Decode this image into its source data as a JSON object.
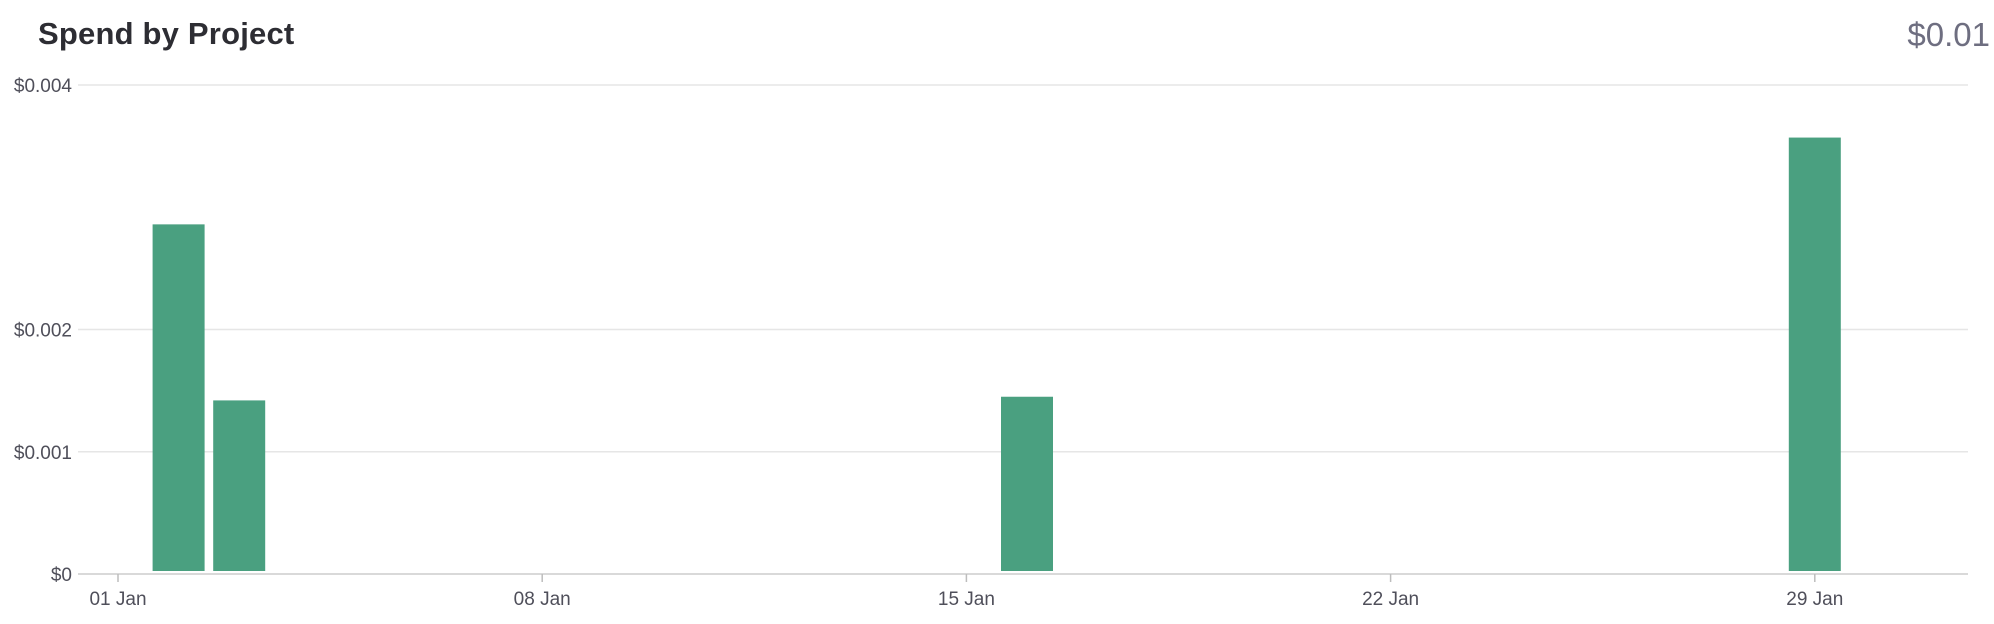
{
  "header": {
    "title": "Spend by Project",
    "total": "$0.01"
  },
  "chart_data": {
    "type": "bar",
    "title": "Spend by Project",
    "xlabel": "",
    "ylabel": "",
    "x_type": "date",
    "xlim": [
      "2024-01-01",
      "2024-01-31"
    ],
    "ylim": [
      0,
      0.004
    ],
    "grid": true,
    "legend": "none",
    "y_ticks": [
      {
        "value": 0,
        "label": "$0"
      },
      {
        "value": 0.001,
        "label": "$0.001"
      },
      {
        "value": 0.002,
        "label": "$0.002"
      },
      {
        "value": 0.004,
        "label": "$0.004"
      }
    ],
    "x_ticks": [
      {
        "value": "2024-01-01",
        "label": "01 Jan"
      },
      {
        "value": "2024-01-08",
        "label": "08 Jan"
      },
      {
        "value": "2024-01-15",
        "label": "15 Jan"
      },
      {
        "value": "2024-01-22",
        "label": "22 Jan"
      },
      {
        "value": "2024-01-29",
        "label": "29 Jan"
      }
    ],
    "series": [
      {
        "color": "#4aa080",
        "points": [
          {
            "x": "2024-01-02",
            "y": 0.00286
          },
          {
            "x": "2024-01-03",
            "y": 0.00142
          },
          {
            "x": "2024-01-16",
            "y": 0.00145
          },
          {
            "x": "2024-01-29",
            "y": 0.00357
          }
        ]
      }
    ]
  }
}
